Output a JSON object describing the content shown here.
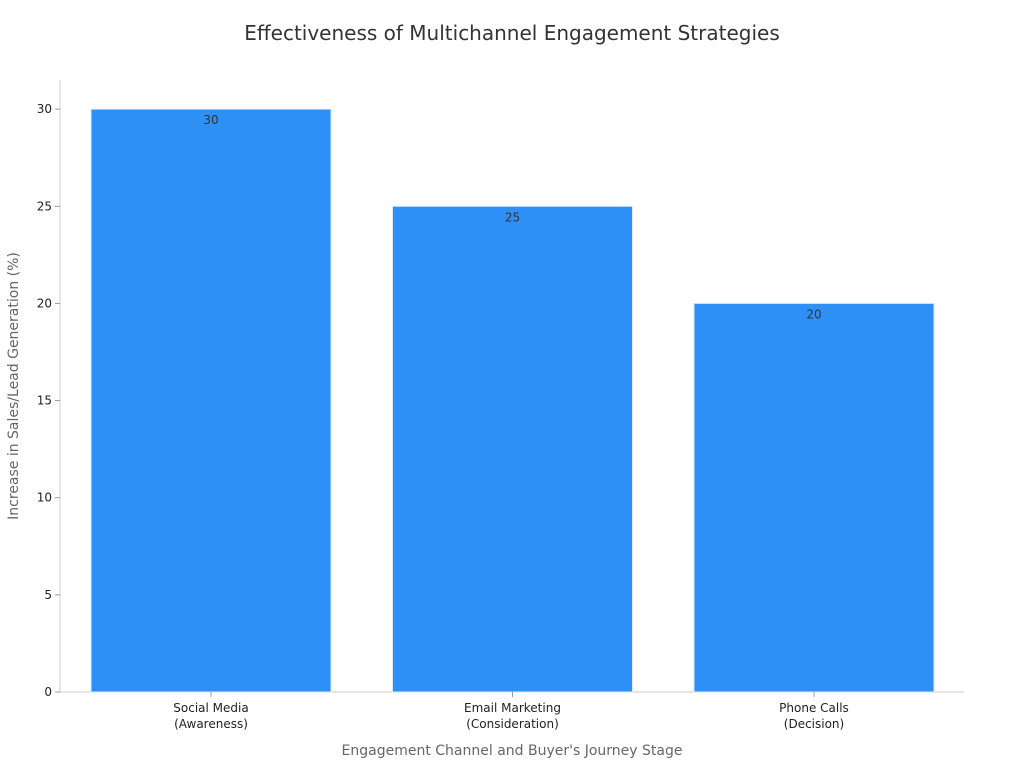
{
  "chart_data": {
    "type": "bar",
    "title": "Effectiveness of Multichannel Engagement Strategies",
    "xlabel": "Engagement Channel and Buyer's Journey Stage",
    "ylabel": "Increase in Sales/Lead Generation (%)",
    "categories": [
      [
        "Social Media",
        "(Awareness)"
      ],
      [
        "Email Marketing",
        "(Consideration)"
      ],
      [
        "Phone Calls",
        "(Decision)"
      ]
    ],
    "values": [
      30,
      25,
      20
    ],
    "ylim": [
      0,
      31.5
    ],
    "yticks": [
      0,
      5,
      10,
      15,
      20,
      25,
      30
    ],
    "grid": false,
    "bar_color": "#2e90f6",
    "bar_edge_color": "#d9e8f7"
  }
}
